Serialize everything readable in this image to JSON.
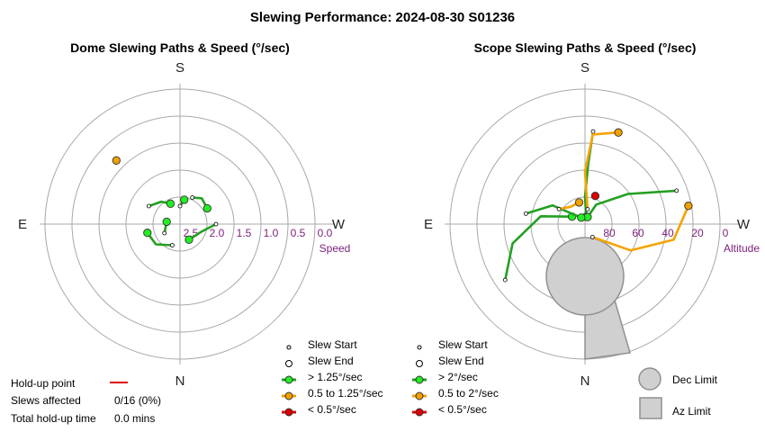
{
  "title": "Slewing Performance: 2024-08-30 S01236",
  "colors": {
    "fast": "#22a022",
    "fast_marker": "#22ee22",
    "mid": "#f5a300",
    "mid_marker": "#f0a000",
    "slow": "#dd0000",
    "ring": "#a8a8a8",
    "limit_fill": "#d0d0d0",
    "limit_stroke": "#909090",
    "tick": "#7b1f7b"
  },
  "dome": {
    "subtitle": "Dome Slewing Paths & Speed (°/sec)",
    "compass": {
      "top": "S",
      "bottom": "N",
      "left": "E",
      "right": "W"
    },
    "ticks": [
      "2.5",
      "2.0",
      "1.5",
      "1.0",
      "0.5",
      "0.0"
    ],
    "axis_name": "Speed",
    "legend": [
      {
        "label": "Slew Start"
      },
      {
        "label": "Slew End"
      },
      {
        "label": "> 1.25°/sec"
      },
      {
        "label": "0.5 to 1.25°/sec"
      },
      {
        "label": "< 0.5°/sec"
      }
    ]
  },
  "scope": {
    "subtitle": "Scope Slewing Paths & Speed (°/sec)",
    "compass": {
      "top": "S",
      "bottom": "N",
      "left": "E",
      "right": "W"
    },
    "ticks": [
      "80",
      "60",
      "40",
      "20",
      "0"
    ],
    "axis_name": "Altitude",
    "legend": [
      {
        "label": "Slew Start"
      },
      {
        "label": "Slew End"
      },
      {
        "label": "> 2°/sec"
      },
      {
        "label": "0.5 to 2°/sec"
      },
      {
        "label": "< 0.5°/sec"
      }
    ],
    "limits": [
      {
        "label": "Dec Limit",
        "icon": "circle-icon"
      },
      {
        "label": "Az Limit",
        "icon": "square-icon"
      }
    ]
  },
  "holdup": {
    "point_label": "Hold-up point",
    "affected_label": "Slews affected",
    "affected_value": "0/16 (0%)",
    "total_label": "Total hold-up time",
    "total_value": "0.0 mins"
  },
  "chart_data": [
    {
      "type": "polar-path",
      "title": "Dome Slewing Paths & Speed (°/sec)",
      "radial_axis": {
        "label": "Speed",
        "ticks": [
          2.5,
          2.0,
          1.5,
          1.0,
          0.5,
          0.0
        ],
        "range": [
          3.0,
          0.0
        ]
      },
      "series": [
        {
          "speed_class": "> 1.25°/sec",
          "points": [
            {
              "az_deg": 25,
              "speed": 2.35
            },
            {
              "az_deg": 40,
              "speed": 2.25
            },
            {
              "az_deg": 60,
              "speed": 2.3
            }
          ]
        },
        {
          "speed_class": "> 1.25°/sec",
          "points": [
            {
              "az_deg": 300,
              "speed": 2.2
            },
            {
              "az_deg": 320,
              "speed": 2.35
            },
            {
              "az_deg": 335,
              "speed": 2.5
            }
          ]
        },
        {
          "speed_class": "> 1.25°/sec",
          "points": [
            {
              "az_deg": 90,
              "speed": 2.2
            },
            {
              "az_deg": 110,
              "speed": 2.5
            },
            {
              "az_deg": 150,
              "speed": 2.6
            }
          ]
        },
        {
          "speed_class": "> 1.25°/sec",
          "points": [
            {
              "az_deg": 200,
              "speed": 2.5
            },
            {
              "az_deg": 230,
              "speed": 2.3
            },
            {
              "az_deg": 255,
              "speed": 2.25
            }
          ]
        },
        {
          "speed_class": "> 1.25°/sec",
          "points": [
            {
              "az_deg": 0,
              "speed": 2.6
            },
            {
              "az_deg": 10,
              "speed": 2.45
            }
          ]
        },
        {
          "speed_class": "> 1.25°/sec",
          "points": [
            {
              "az_deg": 240,
              "speed": 2.6
            },
            {
              "az_deg": 280,
              "speed": 2.7
            }
          ]
        },
        {
          "speed_class": "0.5 to 1.25°/sec",
          "points": [
            {
              "az_deg": 315,
              "speed": 1.0
            }
          ]
        }
      ]
    },
    {
      "type": "polar-path",
      "title": "Scope Slewing Paths & Speed (°/sec)",
      "radial_axis": {
        "label": "Altitude",
        "ticks": [
          80,
          60,
          40,
          20,
          0
        ],
        "range": [
          90,
          0
        ]
      },
      "series": [
        {
          "speed_class": "> 2°/sec",
          "points": [
            {
              "az_deg": 5,
              "alt": 28
            },
            {
              "az_deg": 3,
              "alt": 50
            },
            {
              "az_deg": 0,
              "alt": 72
            },
            {
              "az_deg": 10,
              "alt": 85
            }
          ]
        },
        {
          "speed_class": "> 2°/sec",
          "points": [
            {
              "az_deg": 70,
              "alt": 25
            },
            {
              "az_deg": 55,
              "alt": 55
            },
            {
              "az_deg": 30,
              "alt": 75
            },
            {
              "az_deg": 20,
              "alt": 85
            }
          ]
        },
        {
          "speed_class": "> 2°/sec",
          "points": [
            {
              "az_deg": 235,
              "alt": 25
            },
            {
              "az_deg": 255,
              "alt": 40
            },
            {
              "az_deg": 280,
              "alt": 60
            },
            {
              "az_deg": 300,
              "alt": 80
            }
          ]
        },
        {
          "speed_class": "> 2°/sec",
          "points": [
            {
              "az_deg": 280,
              "alt": 50
            },
            {
              "az_deg": 300,
              "alt": 65
            },
            {
              "az_deg": 330,
              "alt": 85
            }
          ]
        },
        {
          "speed_class": "0.5 to 2°/sec",
          "points": [
            {
              "az_deg": 10,
              "alt": 80
            },
            {
              "az_deg": 0,
              "alt": 55
            },
            {
              "az_deg": 5,
              "alt": 30
            },
            {
              "az_deg": 20,
              "alt": 25
            }
          ]
        },
        {
          "speed_class": "0.5 to 2°/sec",
          "points": [
            {
              "az_deg": 150,
              "alt": 80
            },
            {
              "az_deg": 120,
              "alt": 55
            },
            {
              "az_deg": 100,
              "alt": 30
            },
            {
              "az_deg": 80,
              "alt": 20
            }
          ]
        },
        {
          "speed_class": "0.5 to 2°/sec",
          "points": [
            {
              "az_deg": 300,
              "alt": 70
            },
            {
              "az_deg": 320,
              "alt": 75
            },
            {
              "az_deg": 345,
              "alt": 75
            }
          ]
        },
        {
          "speed_class": "< 0.5°/sec",
          "points": [
            {
              "az_deg": 20,
              "alt": 70
            }
          ]
        }
      ],
      "limits": [
        "Dec Limit",
        "Az Limit"
      ]
    }
  ]
}
